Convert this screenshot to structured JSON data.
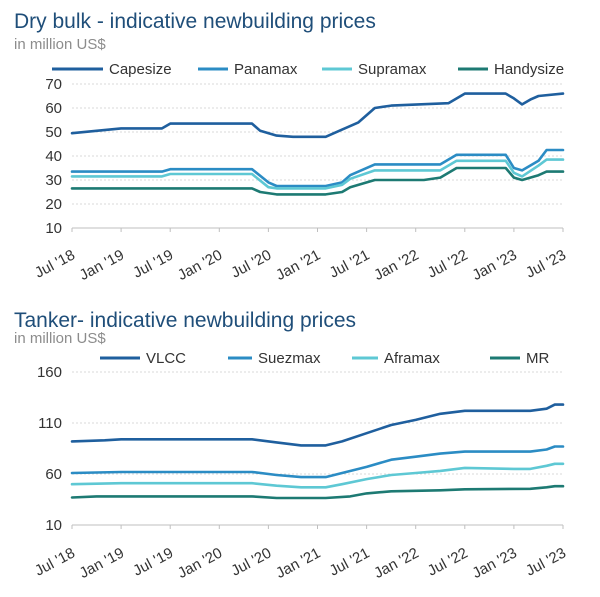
{
  "chart_data": [
    {
      "type": "line",
      "title": "Dry bulk - indicative newbuilding prices",
      "subtitle": "in million US$",
      "xlabel": "",
      "ylabel": "",
      "x_range": [
        "2018-07",
        "2023-07"
      ],
      "ylim": [
        10,
        70
      ],
      "y_ticks": [
        10,
        20,
        30,
        40,
        50,
        60,
        70
      ],
      "x_ticks": [
        "Jul '18",
        "Jan '19",
        "Jul '19",
        "Jan '20",
        "Jul '20",
        "Jan '21",
        "Jul '21",
        "Jan '22",
        "Jul '22",
        "Jan '23",
        "Jul '23"
      ],
      "x_tick_dates": [
        "2018-07",
        "2019-01",
        "2019-07",
        "2020-01",
        "2020-07",
        "2021-01",
        "2021-07",
        "2022-01",
        "2022-07",
        "2023-01",
        "2023-07"
      ],
      "grid": "horizontal",
      "legend": "top",
      "series": [
        {
          "name": "Capesize",
          "color": "#1f5f9e",
          "points": [
            [
              "2018-07",
              49.5
            ],
            [
              "2018-10",
              50.5
            ],
            [
              "2019-01",
              51.5
            ],
            [
              "2019-06",
              51.5
            ],
            [
              "2019-07",
              53.5
            ],
            [
              "2020-05",
              53.5
            ],
            [
              "2020-06",
              50.5
            ],
            [
              "2020-08",
              48.5
            ],
            [
              "2020-10",
              48
            ],
            [
              "2021-02",
              48
            ],
            [
              "2021-04",
              51
            ],
            [
              "2021-06",
              54
            ],
            [
              "2021-08",
              60
            ],
            [
              "2021-10",
              61
            ],
            [
              "2022-05",
              62
            ],
            [
              "2022-07",
              66
            ],
            [
              "2022-12",
              66
            ],
            [
              "2023-01",
              64
            ],
            [
              "2023-02",
              61.5
            ],
            [
              "2023-03",
              63.5
            ],
            [
              "2023-04",
              65
            ],
            [
              "2023-07",
              66
            ]
          ]
        },
        {
          "name": "Panamax",
          "color": "#2b8cc4",
          "points": [
            [
              "2018-07",
              33.5
            ],
            [
              "2019-06",
              33.5
            ],
            [
              "2019-07",
              34.5
            ],
            [
              "2020-05",
              34.5
            ],
            [
              "2020-07",
              29
            ],
            [
              "2020-08",
              27.5
            ],
            [
              "2021-02",
              27.5
            ],
            [
              "2021-04",
              29
            ],
            [
              "2021-05",
              32
            ],
            [
              "2021-08",
              36.5
            ],
            [
              "2022-04",
              36.5
            ],
            [
              "2022-06",
              40.5
            ],
            [
              "2022-12",
              40.5
            ],
            [
              "2023-01",
              35
            ],
            [
              "2023-02",
              34
            ],
            [
              "2023-04",
              38
            ],
            [
              "2023-05",
              42.5
            ],
            [
              "2023-07",
              42.5
            ]
          ]
        },
        {
          "name": "Supramax",
          "color": "#5ec8d4",
          "points": [
            [
              "2018-07",
              31.5
            ],
            [
              "2019-06",
              31.5
            ],
            [
              "2019-07",
              32.5
            ],
            [
              "2020-05",
              32.5
            ],
            [
              "2020-07",
              27
            ],
            [
              "2020-08",
              26.5
            ],
            [
              "2021-02",
              26.5
            ],
            [
              "2021-04",
              28
            ],
            [
              "2021-05",
              30.5
            ],
            [
              "2021-08",
              34
            ],
            [
              "2022-04",
              34
            ],
            [
              "2022-06",
              38
            ],
            [
              "2022-12",
              38
            ],
            [
              "2023-01",
              33
            ],
            [
              "2023-02",
              31.5
            ],
            [
              "2023-04",
              36
            ],
            [
              "2023-05",
              38.5
            ],
            [
              "2023-07",
              38.5
            ]
          ]
        },
        {
          "name": "Handysize",
          "color": "#1d7a73",
          "points": [
            [
              "2018-07",
              26.5
            ],
            [
              "2020-05",
              26.5
            ],
            [
              "2020-06",
              25
            ],
            [
              "2020-08",
              24
            ],
            [
              "2021-02",
              24
            ],
            [
              "2021-04",
              25
            ],
            [
              "2021-05",
              27
            ],
            [
              "2021-08",
              30
            ],
            [
              "2022-02",
              30
            ],
            [
              "2022-04",
              31
            ],
            [
              "2022-06",
              35
            ],
            [
              "2022-12",
              35
            ],
            [
              "2023-01",
              31
            ],
            [
              "2023-02",
              30
            ],
            [
              "2023-04",
              32
            ],
            [
              "2023-05",
              33.5
            ],
            [
              "2023-07",
              33.5
            ]
          ]
        }
      ]
    },
    {
      "type": "line",
      "title": "Tanker- indicative newbuilding prices",
      "subtitle": "in million US$",
      "xlabel": "",
      "ylabel": "",
      "x_range": [
        "2018-07",
        "2023-07"
      ],
      "ylim": [
        10,
        160
      ],
      "y_ticks": [
        10,
        60,
        110,
        160
      ],
      "x_ticks": [
        "Jul '18",
        "Jan '19",
        "Jul '19",
        "Jan '20",
        "Jul '20",
        "Jan '21",
        "Jul '21",
        "Jan '22",
        "Jul '22",
        "Jan '23",
        "Jul '23"
      ],
      "x_tick_dates": [
        "2018-07",
        "2019-01",
        "2019-07",
        "2020-01",
        "2020-07",
        "2021-01",
        "2021-07",
        "2022-01",
        "2022-07",
        "2023-01",
        "2023-07"
      ],
      "grid": "horizontal",
      "legend": "top",
      "series": [
        {
          "name": "VLCC",
          "color": "#1f5f9e",
          "points": [
            [
              "2018-07",
              92
            ],
            [
              "2018-11",
              93
            ],
            [
              "2019-01",
              94
            ],
            [
              "2020-05",
              94
            ],
            [
              "2020-08",
              91
            ],
            [
              "2020-11",
              88
            ],
            [
              "2021-02",
              88
            ],
            [
              "2021-04",
              92
            ],
            [
              "2021-07",
              100
            ],
            [
              "2021-10",
              108
            ],
            [
              "2022-01",
              113
            ],
            [
              "2022-04",
              119
            ],
            [
              "2022-07",
              122
            ],
            [
              "2023-03",
              122
            ],
            [
              "2023-05",
              124
            ],
            [
              "2023-06",
              128
            ],
            [
              "2023-07",
              128
            ]
          ]
        },
        {
          "name": "Suezmax",
          "color": "#2b8cc4",
          "points": [
            [
              "2018-07",
              61
            ],
            [
              "2019-01",
              62
            ],
            [
              "2020-05",
              62
            ],
            [
              "2020-08",
              59
            ],
            [
              "2020-11",
              57
            ],
            [
              "2021-02",
              57
            ],
            [
              "2021-04",
              61
            ],
            [
              "2021-07",
              67
            ],
            [
              "2021-10",
              74
            ],
            [
              "2022-01",
              77
            ],
            [
              "2022-04",
              80
            ],
            [
              "2022-07",
              82
            ],
            [
              "2023-03",
              82
            ],
            [
              "2023-05",
              84
            ],
            [
              "2023-06",
              87
            ],
            [
              "2023-07",
              87
            ]
          ]
        },
        {
          "name": "Aframax",
          "color": "#5ec8d4",
          "points": [
            [
              "2018-07",
              50
            ],
            [
              "2019-01",
              51
            ],
            [
              "2020-05",
              51
            ],
            [
              "2020-08",
              48.5
            ],
            [
              "2020-11",
              47
            ],
            [
              "2021-02",
              47
            ],
            [
              "2021-04",
              50
            ],
            [
              "2021-07",
              55
            ],
            [
              "2021-10",
              59
            ],
            [
              "2022-01",
              61
            ],
            [
              "2022-04",
              63
            ],
            [
              "2022-07",
              66
            ],
            [
              "2023-01",
              65
            ],
            [
              "2023-03",
              65
            ],
            [
              "2023-05",
              68
            ],
            [
              "2023-06",
              70
            ],
            [
              "2023-07",
              70
            ]
          ]
        },
        {
          "name": "MR",
          "color": "#1d7a73",
          "points": [
            [
              "2018-07",
              37
            ],
            [
              "2018-10",
              38
            ],
            [
              "2020-05",
              38
            ],
            [
              "2020-08",
              36.5
            ],
            [
              "2021-02",
              36.5
            ],
            [
              "2021-05",
              38
            ],
            [
              "2021-07",
              41
            ],
            [
              "2021-10",
              43
            ],
            [
              "2022-04",
              44
            ],
            [
              "2022-07",
              45
            ],
            [
              "2023-03",
              45.5
            ],
            [
              "2023-05",
              47
            ],
            [
              "2023-06",
              48
            ],
            [
              "2023-07",
              48
            ]
          ]
        }
      ]
    }
  ]
}
